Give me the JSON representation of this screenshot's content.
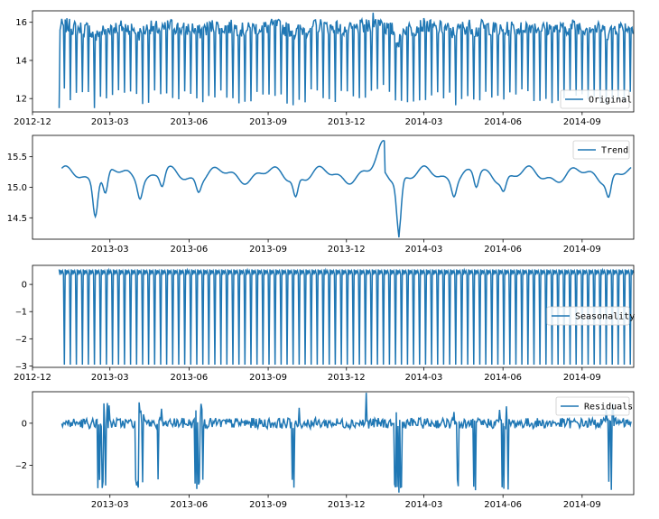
{
  "chart_data": [
    {
      "type": "line",
      "series_name": "Original",
      "series_color": "#1f77b4",
      "legend": {
        "label": "Original",
        "placement": "lower-right"
      },
      "xlim": [
        "2012-12-01",
        "2014-10-31"
      ],
      "ylim": [
        11.3,
        16.6
      ],
      "yticks": [
        {
          "value": 12,
          "label": "12"
        },
        {
          "value": 14,
          "label": "14"
        },
        {
          "value": 16,
          "label": "16"
        }
      ],
      "xticks": [
        {
          "date": "2012-12-01",
          "label": "2012-12"
        },
        {
          "date": "2013-03-01",
          "label": "2013-03"
        },
        {
          "date": "2013-06-01",
          "label": "2013-06"
        },
        {
          "date": "2013-09-01",
          "label": "2013-09"
        },
        {
          "date": "2013-12-01",
          "label": "2013-12"
        },
        {
          "date": "2014-03-01",
          "label": "2014-03"
        },
        {
          "date": "2014-06-01",
          "label": "2014-06"
        },
        {
          "date": "2014-09-01",
          "label": "2014-09"
        }
      ],
      "data": {
        "start": "2013-01-01",
        "end": "2014-10-31",
        "weekly_high_range": [
          15.3,
          16.1
        ],
        "weekly_low_range": [
          11.8,
          12.5
        ],
        "first_value": 11.5,
        "max_value": 16.5
      }
    },
    {
      "type": "line",
      "series_name": "Trend",
      "series_color": "#1f77b4",
      "legend": {
        "label": "Trend",
        "placement": "upper-right"
      },
      "xlim": [
        "2012-12-01",
        "2014-10-31"
      ],
      "ylim": [
        14.15,
        15.85
      ],
      "yticks": [
        {
          "value": 14.5,
          "label": "14.5"
        },
        {
          "value": 15.0,
          "label": "15.0"
        },
        {
          "value": 15.5,
          "label": "15.5"
        }
      ],
      "xticks": [
        {
          "date": "2013-03-01",
          "label": "2013-03"
        },
        {
          "date": "2013-06-01",
          "label": "2013-06"
        },
        {
          "date": "2013-09-01",
          "label": "2013-09"
        },
        {
          "date": "2013-12-01",
          "label": "2013-12"
        },
        {
          "date": "2014-03-01",
          "label": "2014-03"
        },
        {
          "date": "2014-06-01",
          "label": "2014-06"
        },
        {
          "date": "2014-09-01",
          "label": "2014-09"
        }
      ],
      "data": {
        "start": "2013-01-04",
        "end": "2014-10-28",
        "typical_range": [
          15.1,
          15.45
        ],
        "min_value": 14.18,
        "max_value": 15.8
      }
    },
    {
      "type": "line",
      "series_name": "Seasonality",
      "series_color": "#1f77b4",
      "legend": {
        "label": "Seasonality",
        "placement": "center-right"
      },
      "xlim": [
        "2012-12-01",
        "2014-10-31"
      ],
      "ylim": [
        -3.05,
        0.7
      ],
      "yticks": [
        {
          "value": 0,
          "label": "0"
        },
        {
          "value": -1,
          "label": "‒1"
        },
        {
          "value": -2,
          "label": "‒2"
        },
        {
          "value": -3,
          "label": "‒3"
        }
      ],
      "xticks": [
        {
          "date": "2012-12-01",
          "label": "2012-12"
        },
        {
          "date": "2013-03-01",
          "label": "2013-03"
        },
        {
          "date": "2013-06-01",
          "label": "2013-06"
        },
        {
          "date": "2013-09-01",
          "label": "2013-09"
        },
        {
          "date": "2013-12-01",
          "label": "2013-12"
        },
        {
          "date": "2014-03-01",
          "label": "2014-03"
        },
        {
          "date": "2014-06-01",
          "label": "2014-06"
        },
        {
          "date": "2014-09-01",
          "label": "2014-09"
        }
      ],
      "data": {
        "start": "2013-01-01",
        "end": "2014-10-31",
        "period_days": 7,
        "weekly_pattern": [
          0.55,
          0.35,
          0.52,
          0.42,
          0.5,
          0.38,
          -2.95
        ]
      }
    },
    {
      "type": "line",
      "series_name": "Residuals",
      "series_color": "#1f77b4",
      "legend": {
        "label": "Residuals",
        "placement": "upper-right"
      },
      "xlim": [
        "2012-12-01",
        "2014-10-31"
      ],
      "ylim": [
        -3.4,
        1.5
      ],
      "yticks": [
        {
          "value": 0,
          "label": "0"
        },
        {
          "value": -2,
          "label": "‒2"
        }
      ],
      "xticks": [
        {
          "date": "2013-03-01",
          "label": "2013-03"
        },
        {
          "date": "2013-06-01",
          "label": "2013-06"
        },
        {
          "date": "2013-09-01",
          "label": "2013-09"
        },
        {
          "date": "2013-12-01",
          "label": "2013-12"
        },
        {
          "date": "2014-03-01",
          "label": "2014-03"
        },
        {
          "date": "2014-06-01",
          "label": "2014-06"
        },
        {
          "date": "2014-09-01",
          "label": "2014-09"
        }
      ],
      "data": {
        "start": "2013-01-04",
        "end": "2014-10-28",
        "typical_range": [
          -0.25,
          0.25
        ],
        "min_value": -3.3,
        "max_value": 1.45
      }
    }
  ]
}
